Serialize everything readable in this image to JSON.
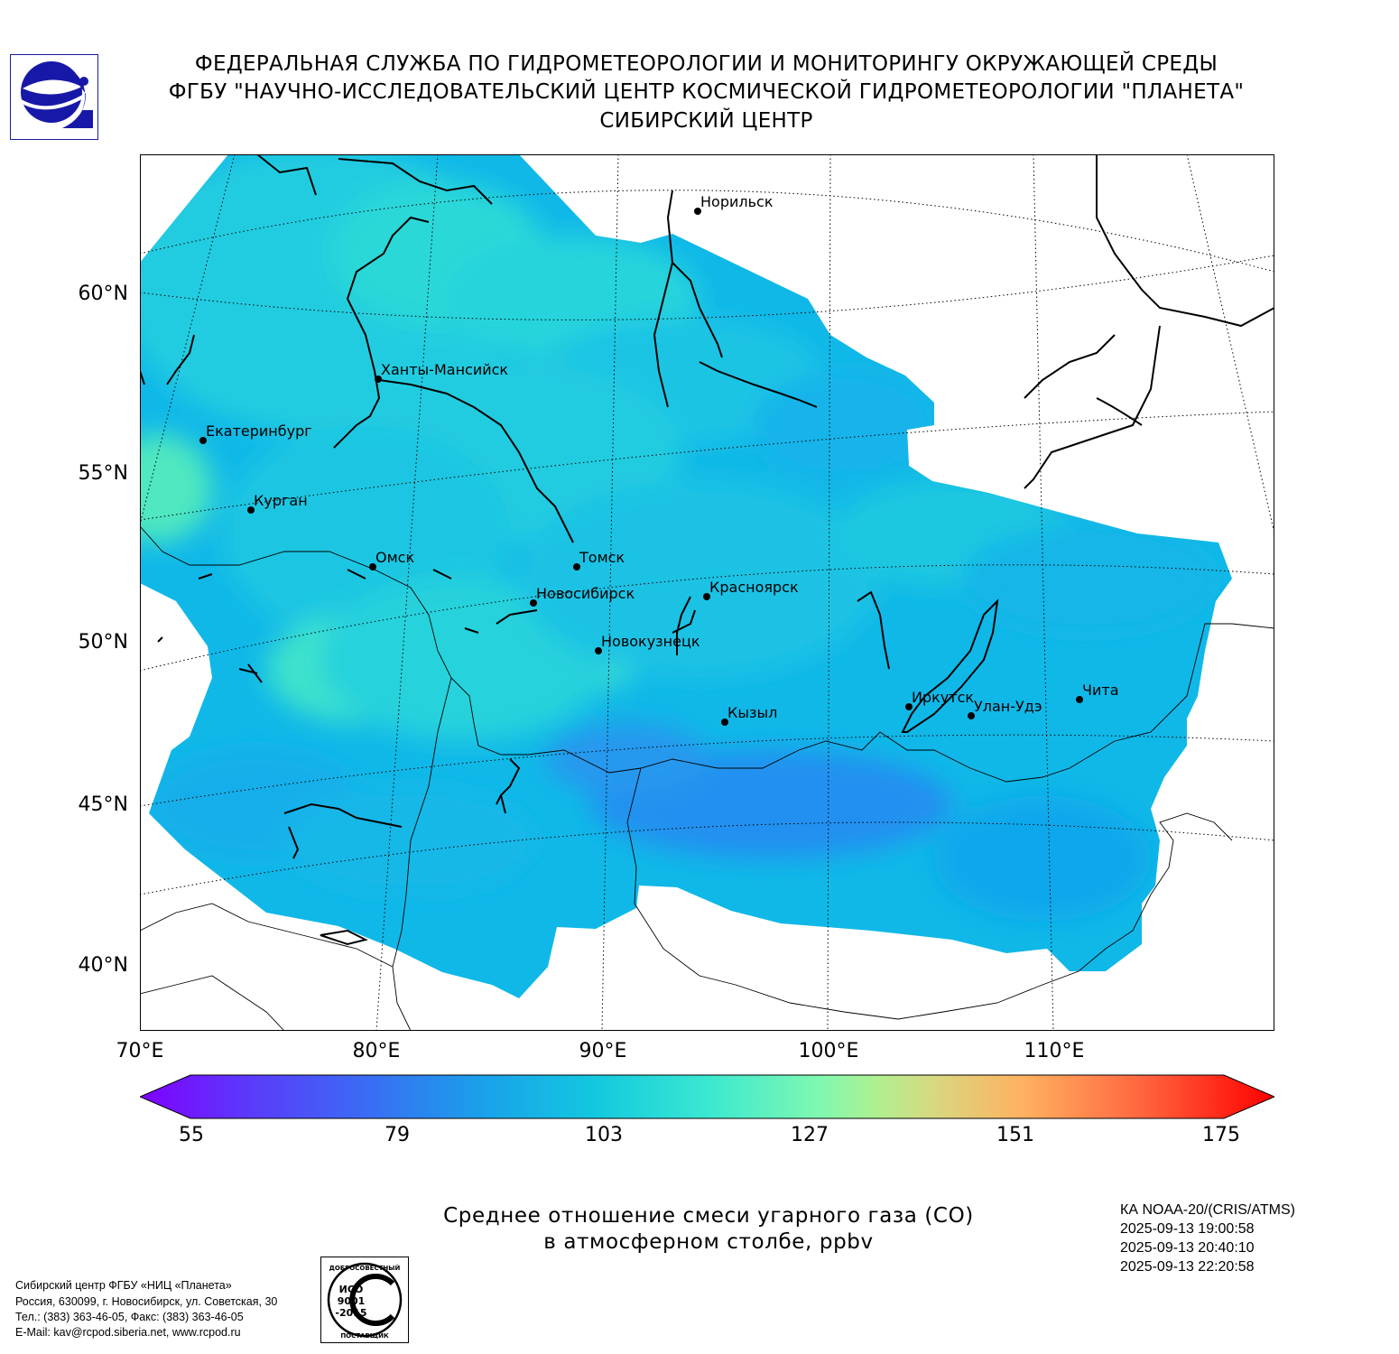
{
  "header": {
    "line1": "ФЕДЕРАЛЬНАЯ СЛУЖБА ПО ГИДРОМЕТЕОРОЛОГИИ И МОНИТОРИНГУ ОКРУЖАЮЩЕЙ СРЕДЫ",
    "line2": "ФГБУ \"НАУЧНО-ИССЛЕДОВАТЕЛЬСКИЙ ЦЕНТР КОСМИЧЕСКОЙ ГИДРОМЕТЕОРОЛОГИИ \"ПЛАНЕТА\"",
    "line3": "СИБИРСКИЙ ЦЕНТР"
  },
  "map": {
    "lat_labels": [
      "60°N",
      "55°N",
      "50°N",
      "45°N",
      "40°N"
    ],
    "lon_labels": [
      "70°E",
      "80°E",
      "90°E",
      "100°E",
      "110°E"
    ],
    "cities": [
      {
        "name": "Норильск"
      },
      {
        "name": "Ханты-Мансийск"
      },
      {
        "name": "Екатеринбург"
      },
      {
        "name": "Курган"
      },
      {
        "name": "Омск"
      },
      {
        "name": "Томск"
      },
      {
        "name": "Новосибирск"
      },
      {
        "name": "Красноярск"
      },
      {
        "name": "Новокузнецк"
      },
      {
        "name": "Кызыл"
      },
      {
        "name": "Иркутск"
      },
      {
        "name": "Улан-Удэ"
      },
      {
        "name": "Чита"
      }
    ],
    "fill_colors": {
      "low": "#0aa8e8",
      "mid": "#1ec8e0",
      "high": "#2ae0c8",
      "peak": "#50f0b8",
      "min": "#2a8cf0"
    }
  },
  "colorbar": {
    "ticks": [
      "55",
      "79",
      "103",
      "127",
      "151",
      "175"
    ],
    "min": 55,
    "max": 175
  },
  "caption": {
    "line1": "Среднее отношение смеси угарного газа (CO)",
    "line2": "в атмосферном столбе, ppbv"
  },
  "satellite": {
    "name": "КА NOAA-20/(CRIS/ATMS)",
    "times": [
      "2025-09-13 19:00:58",
      "2025-09-13 20:40:10",
      "2025-09-13 22:20:58"
    ]
  },
  "contact": {
    "line1": "Сибирский центр ФГБУ «НИЦ «Планета»",
    "line2": "Россия, 630099, г. Новосибирск, ул. Советская, 30",
    "line3": "Тел.: (383) 363-46-05, Факс: (383) 363-46-05",
    "line4": "E-Mail: kav@rcpod.siberia.net, www.rcpod.ru"
  },
  "iso_badge": {
    "top": "ДОБРОСОВЕСТНЫЙ",
    "code": "ИСО",
    "num": "9001",
    "year": "-2015",
    "bottom": "ПОСТАВЩИК"
  }
}
